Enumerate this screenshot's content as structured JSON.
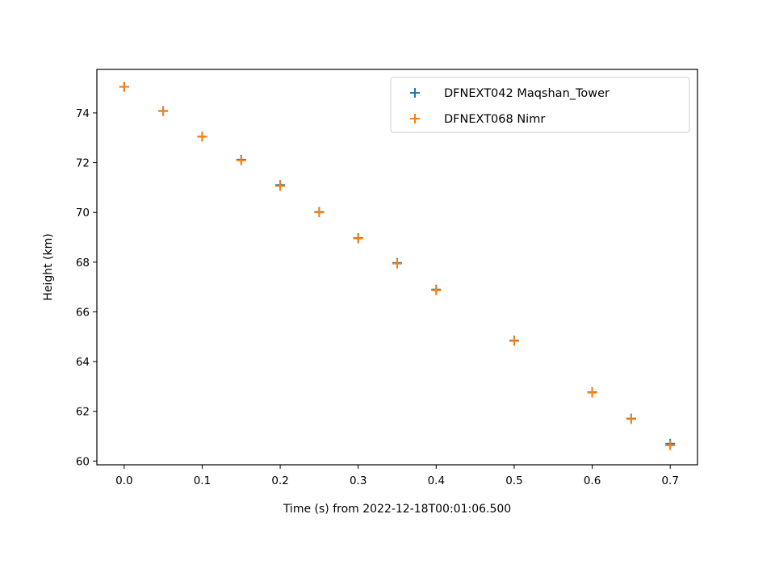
{
  "chart_data": {
    "type": "scatter",
    "xlabel": "Time (s) from 2022-12-18T00:01:06.500",
    "ylabel": "Height (km)",
    "xlim": [
      -0.035,
      0.735
    ],
    "ylim": [
      59.85,
      75.75
    ],
    "xticks": [
      "0.0",
      "0.1",
      "0.2",
      "0.3",
      "0.4",
      "0.5",
      "0.6",
      "0.7"
    ],
    "yticks": [
      "60",
      "62",
      "64",
      "66",
      "68",
      "70",
      "72",
      "74"
    ],
    "grid": false,
    "legend_position": "upper right",
    "marker": "+",
    "series": [
      {
        "name": "DFNEXT042 Maqshan_Tower",
        "color": "#1f77b4",
        "x": [
          0.0,
          0.05,
          0.1,
          0.15,
          0.2,
          0.25,
          0.3,
          0.35,
          0.4,
          0.5,
          0.6,
          0.65,
          0.7
        ],
        "y": [
          75.05,
          74.08,
          73.05,
          72.12,
          71.1,
          70.02,
          68.97,
          67.97,
          66.9,
          64.85,
          62.77,
          61.71,
          60.7
        ]
      },
      {
        "name": "DFNEXT068 Nimr",
        "color": "#ff7f0e",
        "x": [
          0.0,
          0.05,
          0.1,
          0.15,
          0.2,
          0.25,
          0.3,
          0.35,
          0.4,
          0.5,
          0.6,
          0.65,
          0.7
        ],
        "y": [
          75.05,
          74.07,
          73.04,
          72.09,
          71.06,
          70.0,
          68.95,
          67.94,
          66.87,
          64.83,
          62.75,
          61.69,
          60.63
        ]
      }
    ]
  }
}
